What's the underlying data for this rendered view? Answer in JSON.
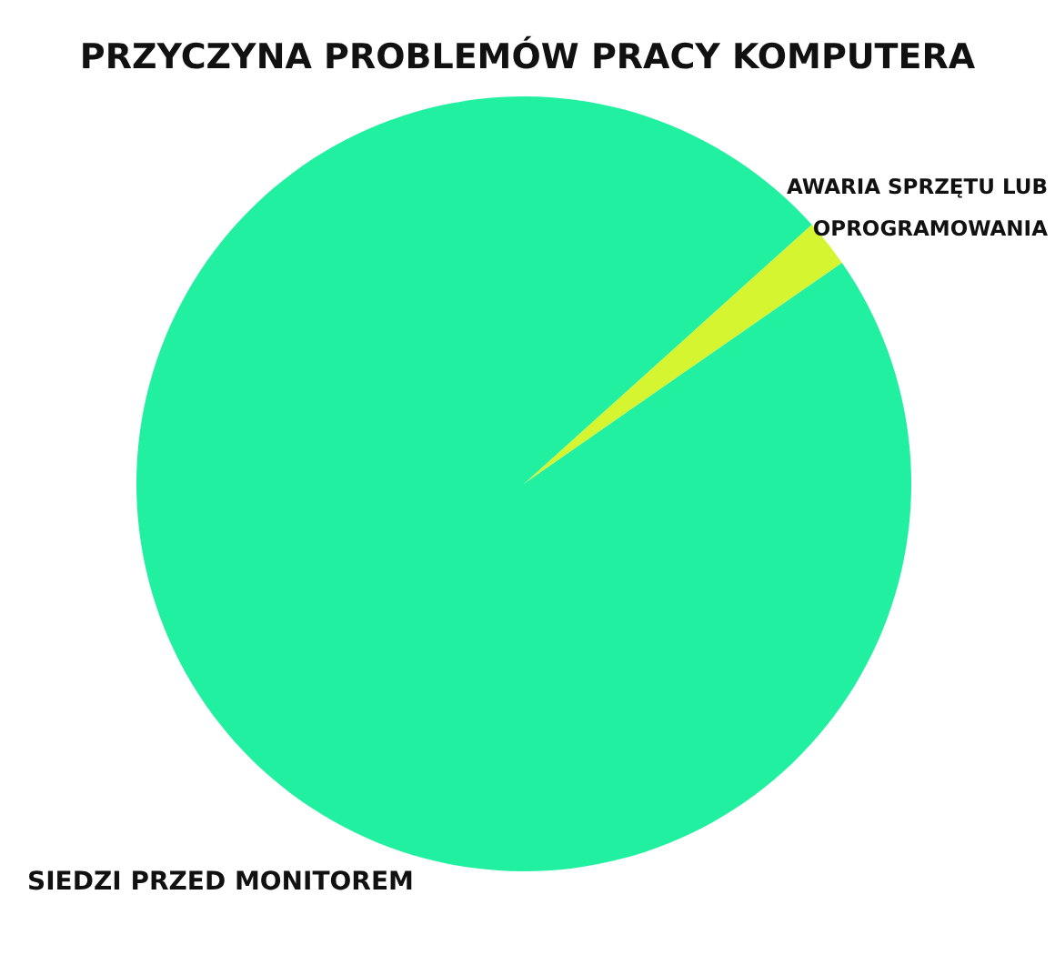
{
  "chart_data": {
    "type": "pie",
    "title": "PRZYCZYNA PROBLEMÓW PRACY KOMPUTERA",
    "categories": [
      "AWARIA SPRZĘTU LUB OPROGRAMOWANIA",
      "SIEDZI PRZED MONITOREM"
    ],
    "values": [
      2,
      98
    ],
    "colors": [
      "#d4f530",
      "#20f0a0"
    ]
  }
}
